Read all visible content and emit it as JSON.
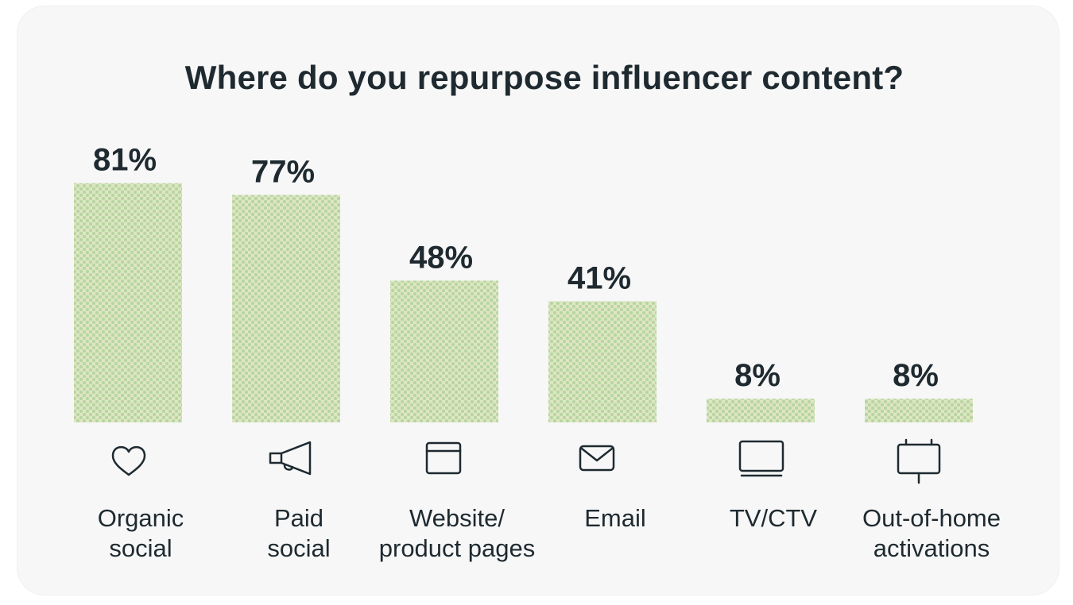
{
  "chart_data": {
    "type": "bar",
    "title": "Where do you repurpose influencer content?",
    "categories": [
      "Organic social",
      "Paid social",
      "Website/ product pages",
      "Email",
      "TV/CTV",
      "Out-of-home activations"
    ],
    "label_lines": [
      [
        "Organic",
        "social"
      ],
      [
        "Paid",
        "social"
      ],
      [
        "Website/",
        "product pages"
      ],
      [
        "Email"
      ],
      [
        "TV/CTV"
      ],
      [
        "Out-of-home",
        "activations"
      ]
    ],
    "values": [
      81,
      77,
      48,
      41,
      8,
      8
    ],
    "value_labels": [
      "81%",
      "77%",
      "48%",
      "41%",
      "8%",
      "8%"
    ],
    "icons": [
      "heart-icon",
      "megaphone-icon",
      "browser-window-icon",
      "envelope-icon",
      "monitor-icon",
      "billboard-icon"
    ],
    "ylim": [
      0,
      100
    ],
    "grid": false,
    "legend": "none",
    "bar_colors": {
      "base": "#dfe6c4",
      "dot": "#b7d6a0"
    },
    "text_color": "#1e2a30"
  }
}
